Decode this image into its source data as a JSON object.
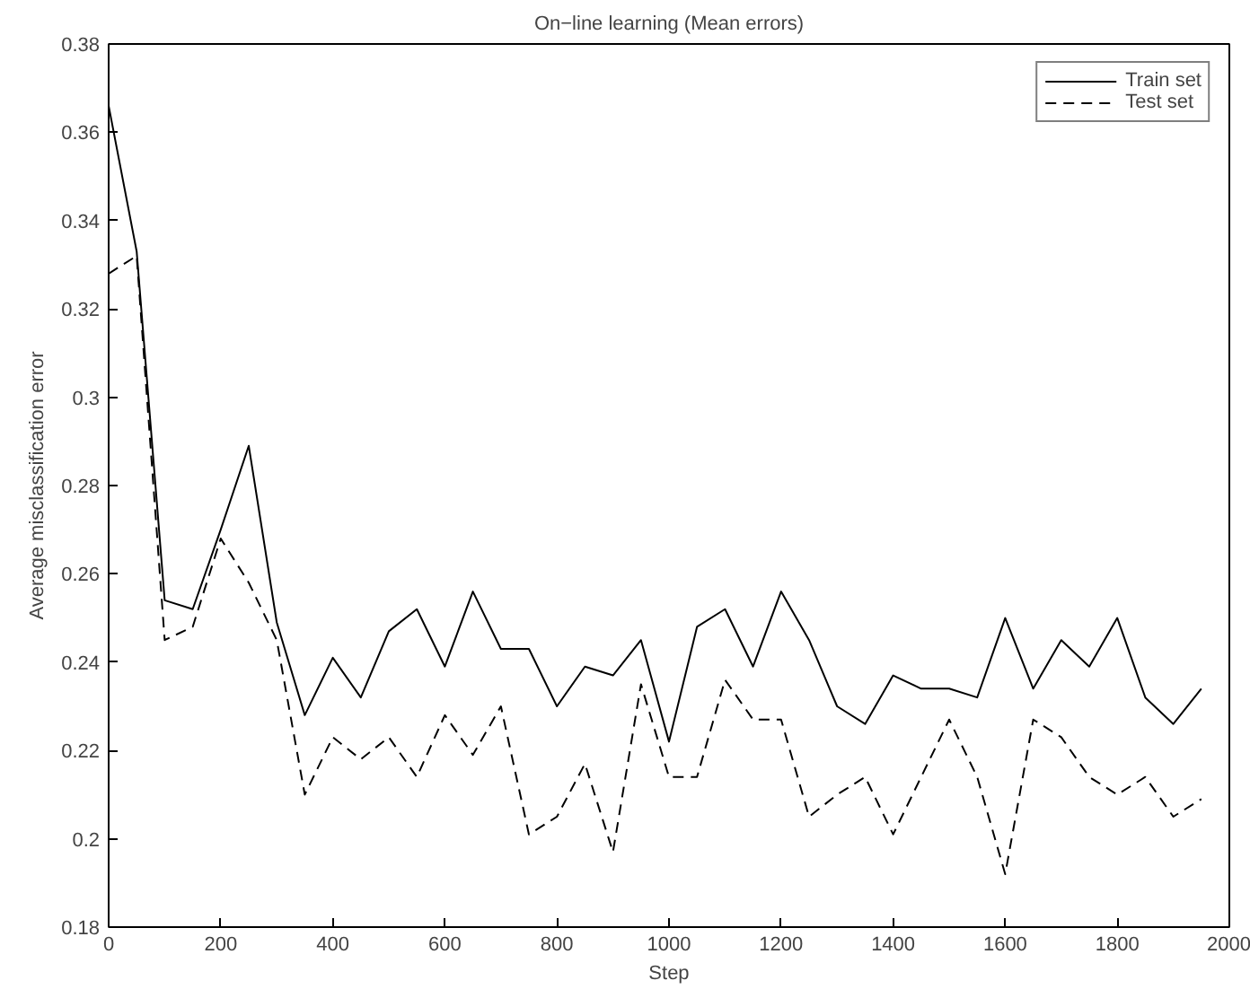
{
  "chart_data": {
    "type": "line",
    "title": "On−line learning (Mean errors)",
    "xlabel": "Step",
    "ylabel": "Average misclassification error",
    "x": [
      0,
      50,
      100,
      150,
      200,
      250,
      300,
      350,
      400,
      450,
      500,
      550,
      600,
      650,
      700,
      750,
      800,
      850,
      900,
      950,
      1000,
      1050,
      1100,
      1150,
      1200,
      1250,
      1300,
      1350,
      1400,
      1450,
      1500,
      1550,
      1600,
      1650,
      1700,
      1750,
      1800,
      1850,
      1900,
      1950
    ],
    "series": [
      {
        "name": "Train set",
        "color": "#000000",
        "line_style": "solid",
        "values": [
          0.366,
          0.333,
          0.254,
          0.252,
          0.27,
          0.289,
          0.249,
          0.228,
          0.241,
          0.232,
          0.247,
          0.252,
          0.239,
          0.256,
          0.243,
          0.243,
          0.23,
          0.239,
          0.237,
          0.245,
          0.222,
          0.248,
          0.252,
          0.239,
          0.256,
          0.245,
          0.23,
          0.226,
          0.237,
          0.234,
          0.234,
          0.232,
          0.25,
          0.234,
          0.245,
          0.239,
          0.25,
          0.232,
          0.226,
          0.234
        ]
      },
      {
        "name": "Test set",
        "color": "#000000",
        "line_style": "dashed",
        "values": [
          0.328,
          0.332,
          0.245,
          0.248,
          0.268,
          0.258,
          0.245,
          0.21,
          0.223,
          0.218,
          0.223,
          0.214,
          0.228,
          0.219,
          0.23,
          0.201,
          0.205,
          0.217,
          0.197,
          0.235,
          0.214,
          0.214,
          0.236,
          0.227,
          0.227,
          0.205,
          0.21,
          0.214,
          0.201,
          0.214,
          0.227,
          0.214,
          0.192,
          0.227,
          0.223,
          0.214,
          0.21,
          0.214,
          0.205,
          0.209
        ]
      }
    ],
    "xlim": [
      0,
      2000
    ],
    "xticks": [
      0,
      200,
      400,
      600,
      800,
      1000,
      1200,
      1400,
      1600,
      1800,
      2000
    ],
    "ylim": [
      0.18,
      0.38
    ],
    "yticks": [
      {
        "value": 0.18,
        "label": "0.18"
      },
      {
        "value": 0.2,
        "label": "0.2"
      },
      {
        "value": 0.22,
        "label": "0.22"
      },
      {
        "value": 0.24,
        "label": "0.24"
      },
      {
        "value": 0.26,
        "label": "0.26"
      },
      {
        "value": 0.28,
        "label": "0.28"
      },
      {
        "value": 0.3,
        "label": "0.3"
      },
      {
        "value": 0.32,
        "label": "0.32"
      },
      {
        "value": 0.34,
        "label": "0.34"
      },
      {
        "value": 0.36,
        "label": "0.36"
      },
      {
        "value": 0.38,
        "label": "0.38"
      }
    ],
    "grid": false,
    "legend": "top right",
    "marker": "none"
  }
}
